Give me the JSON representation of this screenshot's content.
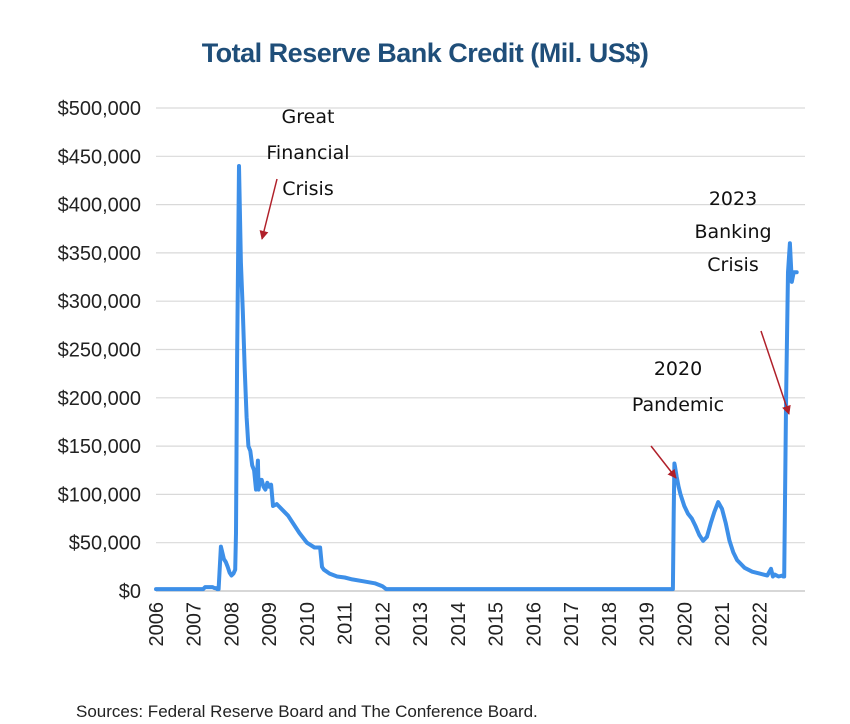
{
  "chart_data": {
    "type": "line",
    "title": "Total Reserve Bank Credit (Mil. US$)",
    "xlabel": "",
    "ylabel": "",
    "xlim": [
      2006.0,
      2023.2
    ],
    "ylim": [
      0,
      500000
    ],
    "grid": true,
    "x_ticks": [
      "2006",
      "2007",
      "2008",
      "2009",
      "2010",
      "2011",
      "2012",
      "2013",
      "2014",
      "2015",
      "2016",
      "2017",
      "2018",
      "2019",
      "2020",
      "2021",
      "2022"
    ],
    "y_ticks": [
      "$0",
      "$50,000",
      "$100,000",
      "$150,000",
      "$200,000",
      "$250,000",
      "$300,000",
      "$350,000",
      "$400,000",
      "$450,000",
      "$500,000"
    ],
    "series": [
      {
        "color": "#3d8fe8",
        "x": [
          2006.0,
          2007.0,
          2007.25,
          2007.3,
          2007.5,
          2007.55,
          2007.6,
          2007.62,
          2007.66,
          2007.72,
          2007.8,
          2007.85,
          2007.9,
          2007.95,
          2008.0,
          2008.05,
          2008.1,
          2008.12,
          2008.15,
          2008.2,
          2008.25,
          2008.3,
          2008.35,
          2008.4,
          2008.45,
          2008.5,
          2008.55,
          2008.6,
          2008.65,
          2008.7,
          2008.72,
          2008.75,
          2008.8,
          2008.85,
          2008.9,
          2008.95,
          2009.0,
          2009.05,
          2009.1,
          2009.2,
          2009.3,
          2009.4,
          2009.5,
          2009.6,
          2009.8,
          2010.0,
          2010.2,
          2010.35,
          2010.4,
          2010.45,
          2010.6,
          2010.8,
          2011.0,
          2011.2,
          2011.5,
          2011.8,
          2012.0,
          2012.1,
          2013.0,
          2015.0,
          2017.0,
          2019.0,
          2019.7,
          2019.72,
          2019.74,
          2019.75,
          2019.8,
          2019.85,
          2019.9,
          2020.0,
          2020.1,
          2020.2,
          2020.3,
          2020.4,
          2020.5,
          2020.6,
          2020.7,
          2020.8,
          2020.9,
          2021.0,
          2021.1,
          2021.2,
          2021.3,
          2021.4,
          2021.5,
          2021.6,
          2021.8,
          2022.0,
          2022.2,
          2022.3,
          2022.35,
          2022.4,
          2022.5,
          2022.6,
          2022.62,
          2022.65,
          2022.7,
          2022.75,
          2022.8,
          2022.85,
          2022.9,
          2022.95,
          2022.98
        ],
        "y": [
          2000,
          2000,
          2000,
          4000,
          4000,
          3000,
          3000,
          2000,
          2000,
          46000,
          33000,
          30000,
          25000,
          19000,
          16000,
          18000,
          22000,
          60000,
          240000,
          440000,
          340000,
          290000,
          230000,
          180000,
          150000,
          145000,
          130000,
          125000,
          105000,
          135000,
          105000,
          115000,
          115000,
          108000,
          105000,
          112000,
          108000,
          110000,
          88000,
          90000,
          86000,
          82000,
          78000,
          72000,
          60000,
          50000,
          45000,
          45000,
          25000,
          22000,
          18000,
          15000,
          14000,
          12000,
          10000,
          8000,
          5000,
          2000,
          2000,
          2000,
          2000,
          2000,
          2000,
          80000,
          132000,
          130000,
          118000,
          108000,
          100000,
          88000,
          80000,
          75000,
          67000,
          58000,
          52000,
          56000,
          70000,
          82000,
          92000,
          85000,
          70000,
          52000,
          40000,
          32000,
          28000,
          24000,
          20000,
          18000,
          16000,
          23000,
          15000,
          17000,
          15000,
          16000,
          15000,
          15000,
          200000,
          330000,
          360000,
          320000,
          330000,
          330000,
          330000
        ]
      }
    ],
    "annotations": [
      {
        "lines": [
          "Great",
          "Financial",
          "Crisis"
        ]
      },
      {
        "lines": [
          "2020",
          "Pandemic"
        ]
      },
      {
        "lines": [
          "2023",
          "Banking",
          "Crisis"
        ]
      }
    ],
    "source": "Sources: Federal Reserve Board and The Conference Board."
  }
}
